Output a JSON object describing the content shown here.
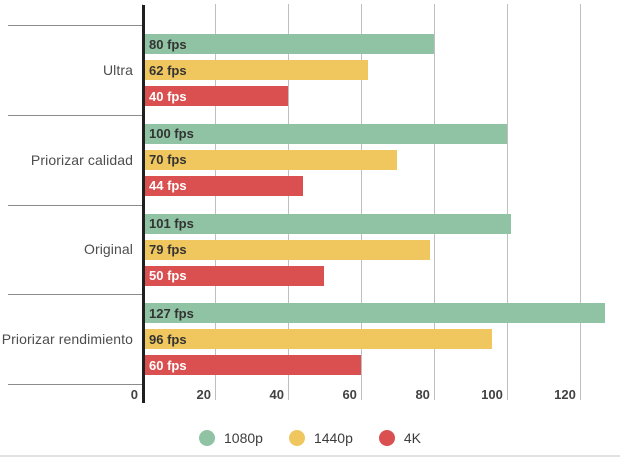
{
  "chart_data": {
    "type": "bar",
    "orientation": "horizontal",
    "title": "",
    "categories": [
      "Ultra",
      "Priorizar calidad",
      "Original",
      "Priorizar rendimiento"
    ],
    "series": [
      {
        "name": "1080p",
        "color": "#8FC3A3",
        "label_color": "#333333",
        "values": [
          80,
          100,
          101,
          127
        ]
      },
      {
        "name": "1440p",
        "color": "#EFC75E",
        "label_color": "#333333",
        "values": [
          62,
          70,
          79,
          96
        ]
      },
      {
        "name": "4K",
        "color": "#DA4F4F",
        "label_color": "#ffffff",
        "values": [
          40,
          44,
          50,
          60
        ]
      }
    ],
    "value_suffix": " fps",
    "xticks": [
      0,
      20,
      40,
      60,
      80,
      100,
      120
    ],
    "xlim": [
      0,
      131
    ],
    "grid": true,
    "legend_position": "bottom",
    "legend_swatch_names": [
      "legend-swatch-1080p",
      "legend-swatch-1440p",
      "legend-swatch-4k"
    ]
  }
}
